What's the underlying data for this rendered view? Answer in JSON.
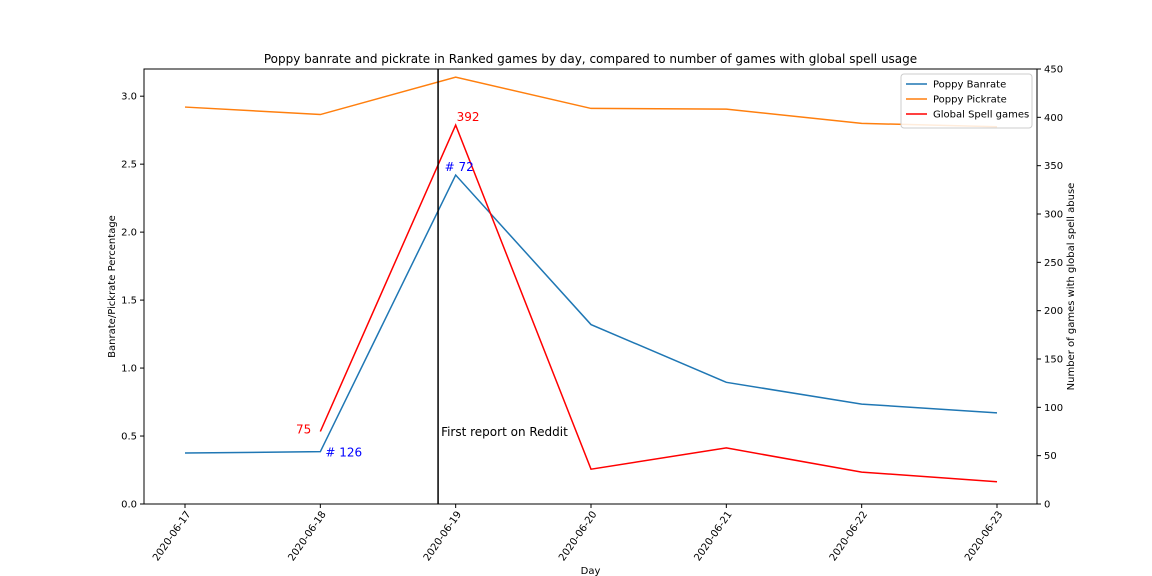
{
  "chart_data": {
    "type": "line",
    "title": "Poppy banrate and pickrate in Ranked games by day, compared to number of games with global spell usage",
    "xlabel": "Day",
    "ylabel": "Banrate/Pickrate Percentage",
    "ylabel_right": "Number of games with global spell abuse",
    "categories": [
      "2020-06-17",
      "2020-06-18",
      "2020-06-19",
      "2020-06-20",
      "2020-06-21",
      "2020-06-22",
      "2020-06-23"
    ],
    "ylim": [
      0,
      3.2
    ],
    "ylim_right": [
      0,
      450
    ],
    "yticks": [
      "0.0",
      "0.5",
      "1.0",
      "1.5",
      "2.0",
      "2.5",
      "3.0"
    ],
    "yticks_right": [
      "0",
      "50",
      "100",
      "150",
      "200",
      "250",
      "300",
      "350",
      "400",
      "450"
    ],
    "grid": false,
    "legend_placement": "top-right",
    "series": [
      {
        "name": "Poppy Banrate",
        "axis": "left",
        "color": "#1f77b4",
        "values": [
          0.375,
          0.385,
          2.42,
          1.32,
          0.895,
          0.735,
          0.67
        ]
      },
      {
        "name": "Poppy Pickrate",
        "axis": "left",
        "color": "#ff7f0e",
        "values": [
          2.92,
          2.865,
          3.14,
          2.91,
          2.905,
          2.8,
          2.775
        ]
      },
      {
        "name": "Global Spell games",
        "axis": "right",
        "color": "#ff0000",
        "values": [
          null,
          75,
          392,
          36,
          58,
          33,
          23
        ]
      }
    ],
    "vline": {
      "x_category_index": 1.87,
      "label": "First report on Reddit",
      "color": "#000000"
    },
    "annotations": [
      {
        "text": "75",
        "color": "#ff0000",
        "series": 2,
        "index": 1,
        "placement": "left"
      },
      {
        "text": "392",
        "color": "#ff0000",
        "series": 2,
        "index": 2,
        "placement": "right-above"
      },
      {
        "text": "# 126",
        "color": "#0000ff",
        "series": 0,
        "index": 1,
        "placement": "right"
      },
      {
        "text": "# 72",
        "color": "#0000ff",
        "series": 0,
        "index": 2,
        "placement": "left-above"
      }
    ]
  }
}
